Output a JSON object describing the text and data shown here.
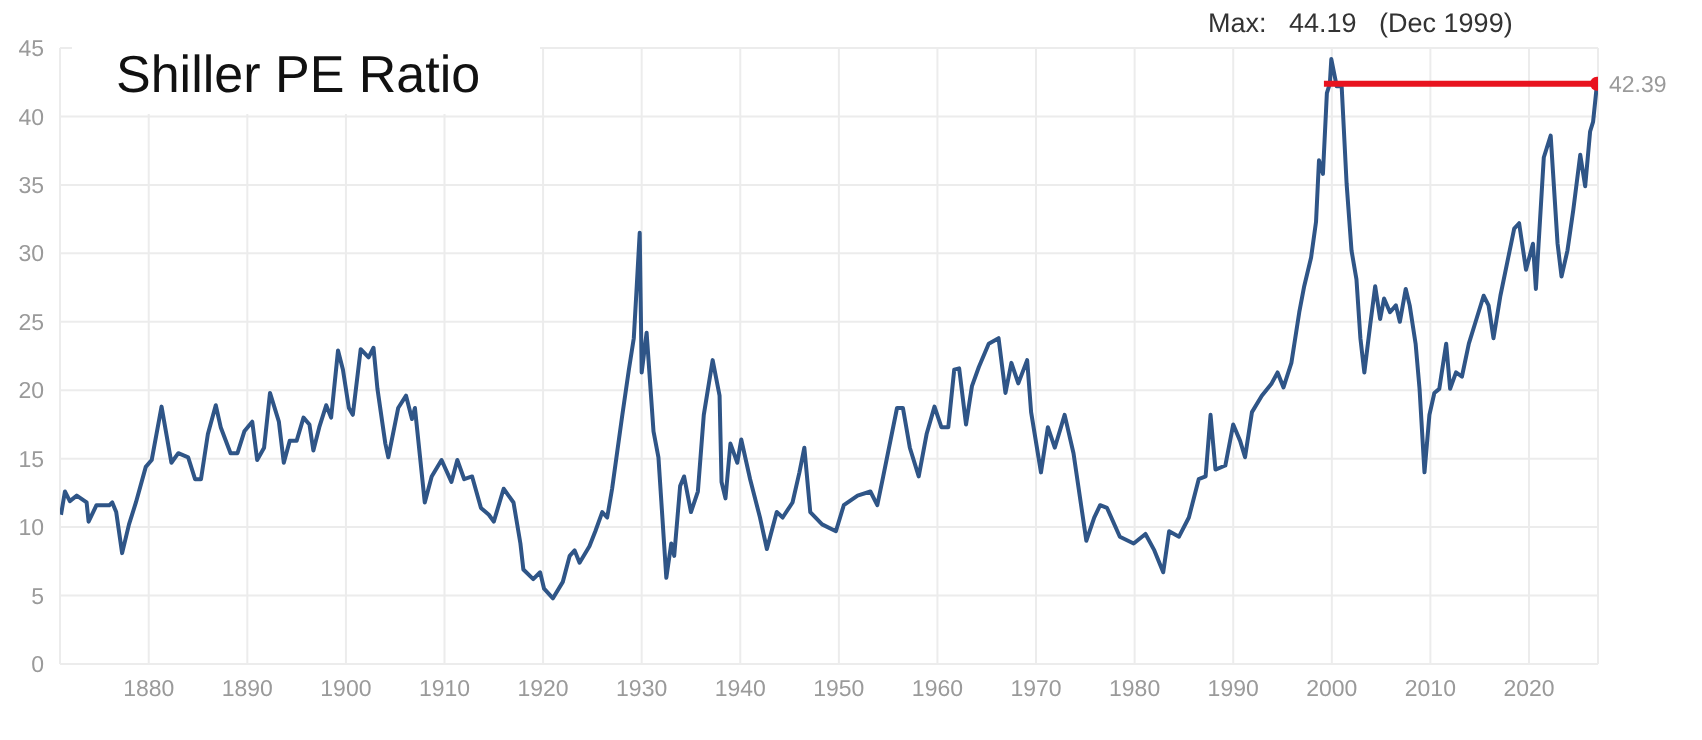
{
  "chart_data": {
    "type": "line",
    "title": "Shiller PE Ratio",
    "annotations": [
      "Max:   44.19   (Dec 1999)"
    ],
    "xlim": [
      1871,
      2027
    ],
    "xticks": [
      1880,
      1890,
      1900,
      1910,
      1920,
      1930,
      1940,
      1950,
      1960,
      1970,
      1980,
      1990,
      2000,
      2010,
      2020
    ],
    "ylim": [
      0,
      45
    ],
    "yticks": [
      0,
      5,
      10,
      15,
      20,
      25,
      30,
      35,
      40,
      45
    ],
    "grid": true,
    "legend": false,
    "series": [
      {
        "color": "#2f5587",
        "marker": "none",
        "x": [
          1871.1,
          1871.5,
          1872,
          1872.7,
          1873.7,
          1873.9,
          1874.7,
          1876,
          1876.3,
          1876.7,
          1877.3,
          1878,
          1878.7,
          1879.7,
          1880.3,
          1881.3,
          1882.3,
          1883,
          1884,
          1884.7,
          1885.3,
          1886,
          1886.8,
          1887.3,
          1888.3,
          1889,
          1889.7,
          1890.5,
          1891,
          1891.7,
          1892.3,
          1893.2,
          1893.7,
          1894.3,
          1895,
          1895.7,
          1896.3,
          1896.7,
          1897.3,
          1898,
          1898.5,
          1899.2,
          1899.7,
          1900.3,
          1900.7,
          1901.5,
          1902.3,
          1902.8,
          1903.2,
          1904,
          1904.3,
          1905.3,
          1906.1,
          1906.7,
          1907,
          1908,
          1908.7,
          1909.7,
          1910.7,
          1911.3,
          1912,
          1912.8,
          1913.7,
          1914.5,
          1915,
          1916,
          1917,
          1917.7,
          1918,
          1919,
          1919.7,
          1920.1,
          1921,
          1922,
          1922.7,
          1923.2,
          1923.7,
          1924.7,
          1925.3,
          1926,
          1926.5,
          1927,
          1928,
          1928.7,
          1929.2,
          1929.5,
          1929.8,
          1930,
          1930.5,
          1931.2,
          1931.7,
          1932.5,
          1933,
          1933.3,
          1933.9,
          1934.3,
          1935,
          1935.7,
          1936.3,
          1937.2,
          1937.9,
          1938.1,
          1938.5,
          1939,
          1939.7,
          1940.1,
          1941,
          1942,
          1942.7,
          1943.7,
          1944.3,
          1945.3,
          1946,
          1946.5,
          1947.1,
          1948.3,
          1949.7,
          1950.5,
          1951.9,
          1953.2,
          1953.9,
          1954.5,
          1955.9,
          1956.5,
          1957.2,
          1958.1,
          1958.9,
          1959.7,
          1960.4,
          1961.1,
          1961.7,
          1962.2,
          1962.9,
          1963.5,
          1964.2,
          1965.2,
          1966.2,
          1966.9,
          1967.5,
          1968.2,
          1969.1,
          1969.5,
          1970.5,
          1971.2,
          1971.9,
          1972.9,
          1973.8,
          1975.1,
          1975.9,
          1976.5,
          1977.2,
          1978.5,
          1979.9,
          1981.1,
          1982,
          1982.9,
          1983.5,
          1984.5,
          1985.5,
          1986.5,
          1987.2,
          1987.7,
          1988.2,
          1989.2,
          1990,
          1990.7,
          1991.2,
          1991.9,
          1992.9,
          1993.9,
          1994.5,
          1995.1,
          1995.9,
          1996.7,
          1997.2,
          1997.9,
          1998.4,
          1998.7,
          1999.1,
          1999.5,
          1999.8,
          1999.95,
          2000.5,
          2001,
          2001.5,
          2002,
          2002.5,
          2002.9,
          2003.3,
          2003.9,
          2004.4,
          2004.9,
          2005.3,
          2005.9,
          2006.5,
          2006.9,
          2007.5,
          2007.9,
          2008.5,
          2008.9,
          2009.4,
          2009.9,
          2010.4,
          2010.9,
          2011.6,
          2012,
          2012.6,
          2013.2,
          2013.9,
          2014.5,
          2015.4,
          2015.9,
          2016.4,
          2017.1,
          2017.9,
          2018.5,
          2019,
          2019.7,
          2020.4,
          2020.7,
          2021.5,
          2022.2,
          2022.9,
          2023.3,
          2023.9,
          2024.5,
          2025.2,
          2025.7,
          2026.2,
          2026.5,
          2026.9
        ],
        "values": [
          10.9,
          12.6,
          11.9,
          12.3,
          11.8,
          10.4,
          11.6,
          11.6,
          11.8,
          11.1,
          8.1,
          10.2,
          11.8,
          14.4,
          14.9,
          18.8,
          14.7,
          15.4,
          15.1,
          13.5,
          13.5,
          16.8,
          18.9,
          17.3,
          15.4,
          15.4,
          17,
          17.7,
          14.9,
          15.8,
          19.8,
          17.7,
          14.7,
          16.3,
          16.3,
          18,
          17.5,
          15.6,
          17.3,
          18.9,
          18,
          22.9,
          21.5,
          18.7,
          18.2,
          23,
          22.4,
          23.1,
          20.1,
          16.1,
          15.1,
          18.7,
          19.6,
          17.9,
          18.7,
          11.8,
          13.7,
          14.9,
          13.3,
          14.9,
          13.5,
          13.7,
          11.4,
          10.9,
          10.4,
          12.8,
          11.8,
          8.8,
          6.9,
          6.2,
          6.7,
          5.5,
          4.8,
          6,
          7.9,
          8.3,
          7.4,
          8.6,
          9.7,
          11.1,
          10.7,
          12.8,
          18,
          21.5,
          23.8,
          27.6,
          31.5,
          21.3,
          24.2,
          17,
          15.1,
          6.3,
          8.8,
          7.9,
          13,
          13.7,
          11.1,
          12.6,
          18.2,
          22.2,
          19.6,
          13.3,
          12.1,
          16.1,
          14.7,
          16.4,
          13.5,
          10.7,
          8.4,
          11.1,
          10.7,
          11.8,
          14,
          15.8,
          11.1,
          10.2,
          9.7,
          11.6,
          12.3,
          12.6,
          11.6,
          13.7,
          18.7,
          18.7,
          15.8,
          13.7,
          16.8,
          18.8,
          17.3,
          17.3,
          21.5,
          21.6,
          17.5,
          20.3,
          21.7,
          23.4,
          23.8,
          19.8,
          22,
          20.5,
          22.2,
          18.4,
          14,
          17.3,
          15.8,
          18.2,
          15.4,
          9,
          10.7,
          11.6,
          11.4,
          9.3,
          8.8,
          9.5,
          8.3,
          6.7,
          9.7,
          9.3,
          10.7,
          13.5,
          13.7,
          18.2,
          14.2,
          14.5,
          17.5,
          16.3,
          15.1,
          18.4,
          19.6,
          20.5,
          21.3,
          20.2,
          22,
          25.7,
          27.6,
          29.7,
          32.3,
          36.8,
          35.8,
          41.7,
          42.4,
          44.19,
          42.2,
          42.2,
          35.1,
          30.2,
          28.1,
          23.8,
          21.3,
          24.8,
          27.6,
          25.2,
          26.7,
          25.7,
          26.2,
          25,
          27.4,
          26.2,
          23.4,
          20.1,
          14,
          18.2,
          19.8,
          20.1,
          23.4,
          20.1,
          21.3,
          21,
          23.4,
          24.8,
          26.9,
          26.2,
          23.8,
          26.9,
          29.7,
          31.8,
          32.2,
          28.8,
          30.7,
          27.4,
          37,
          38.6,
          30.7,
          28.3,
          30.2,
          33.2,
          37.2,
          34.9,
          38.9,
          39.6,
          42.39
        ]
      },
      {
        "color": "#e8131f",
        "marker": "circle",
        "x": [
          1999.2,
          2026.9
        ],
        "values": [
          42.39,
          42.39
        ],
        "value_labels": [
          null,
          "42.39"
        ]
      }
    ]
  }
}
